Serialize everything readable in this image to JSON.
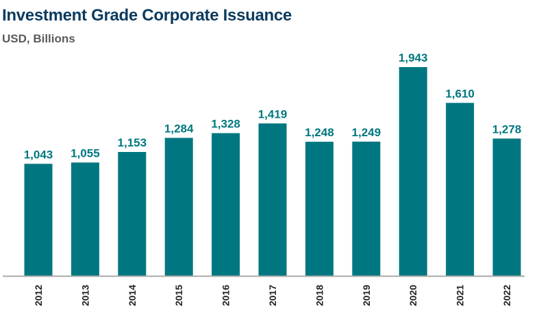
{
  "title": "Investment Grade Corporate Issuance",
  "subtitle": "USD, Billions",
  "colors": {
    "bar": "#007780",
    "label": "#007780",
    "title": "#0b3a5e",
    "axis": "#aaaaaa"
  },
  "chart_data": {
    "type": "bar",
    "title": "Investment Grade Corporate Issuance",
    "subtitle": "USD, Billions",
    "categories": [
      "2012",
      "2013",
      "2014",
      "2015",
      "2016",
      "2017",
      "2018",
      "2019",
      "2020",
      "2021",
      "2022"
    ],
    "values": [
      1043,
      1055,
      1153,
      1284,
      1328,
      1419,
      1248,
      1249,
      1943,
      1610,
      1278
    ],
    "data_labels": [
      "1,043",
      "1,055",
      "1,153",
      "1,284",
      "1,328",
      "1,419",
      "1,248",
      "1,249",
      "1,943",
      "1,610",
      "1,278"
    ],
    "xlabel": "",
    "ylabel": "",
    "ylim": [
      0,
      1943
    ],
    "grid": false,
    "legend": "none"
  }
}
